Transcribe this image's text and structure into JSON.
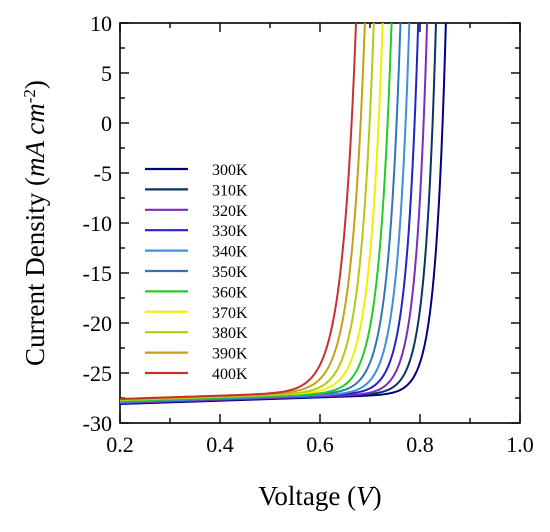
{
  "chart_data": {
    "type": "line",
    "title": "",
    "xlabel": "Voltage (V)",
    "ylabel": "Current Density (mA cm-2)",
    "xlim": [
      0.2,
      1.0
    ],
    "ylim": [
      -30,
      10
    ],
    "x_ticks": [
      "0.2",
      "0.4",
      "0.6",
      "0.8",
      "1.0"
    ],
    "y_ticks": [
      "10",
      "5",
      "0",
      "-5",
      "-10",
      "-15",
      "-20",
      "-25",
      "-30"
    ],
    "grid": false,
    "legend_position": "center-left",
    "series": [
      {
        "name": "300K",
        "color": "#000080",
        "jsc": -28.1,
        "voc": 0.846,
        "mfg": 0.021,
        "tilt": 3.0
      },
      {
        "name": "310K",
        "color": "#0a3560",
        "jsc": -28.0,
        "voc": 0.826,
        "mfg": 0.0215,
        "tilt": 3.0
      },
      {
        "name": "320K",
        "color": "#7b2cbf",
        "jsc": -28.0,
        "voc": 0.808,
        "mfg": 0.0222,
        "tilt": 3.0
      },
      {
        "name": "330K",
        "color": "#2222cc",
        "jsc": -27.9,
        "voc": 0.79,
        "mfg": 0.0229,
        "tilt": 3.0
      },
      {
        "name": "340K",
        "color": "#3f8fdc",
        "jsc": -27.9,
        "voc": 0.772,
        "mfg": 0.0236,
        "tilt": 3.0
      },
      {
        "name": "350K",
        "color": "#2f77b8",
        "jsc": -27.8,
        "voc": 0.754,
        "mfg": 0.0243,
        "tilt": 3.0
      },
      {
        "name": "360K",
        "color": "#22cc22",
        "jsc": -27.8,
        "voc": 0.736,
        "mfg": 0.025,
        "tilt": 3.0
      },
      {
        "name": "370K",
        "color": "#f0f000",
        "jsc": -27.7,
        "voc": 0.718,
        "mfg": 0.0257,
        "tilt": 3.0
      },
      {
        "name": "380K",
        "color": "#b5c814",
        "jsc": -27.7,
        "voc": 0.7,
        "mfg": 0.0264,
        "tilt": 3.0
      },
      {
        "name": "390K",
        "color": "#c8a018",
        "jsc": -27.6,
        "voc": 0.682,
        "mfg": 0.0271,
        "tilt": 3.0
      },
      {
        "name": "400K",
        "color": "#c83030",
        "jsc": -27.6,
        "voc": 0.664,
        "mfg": 0.0278,
        "tilt": 3.0
      }
    ]
  }
}
